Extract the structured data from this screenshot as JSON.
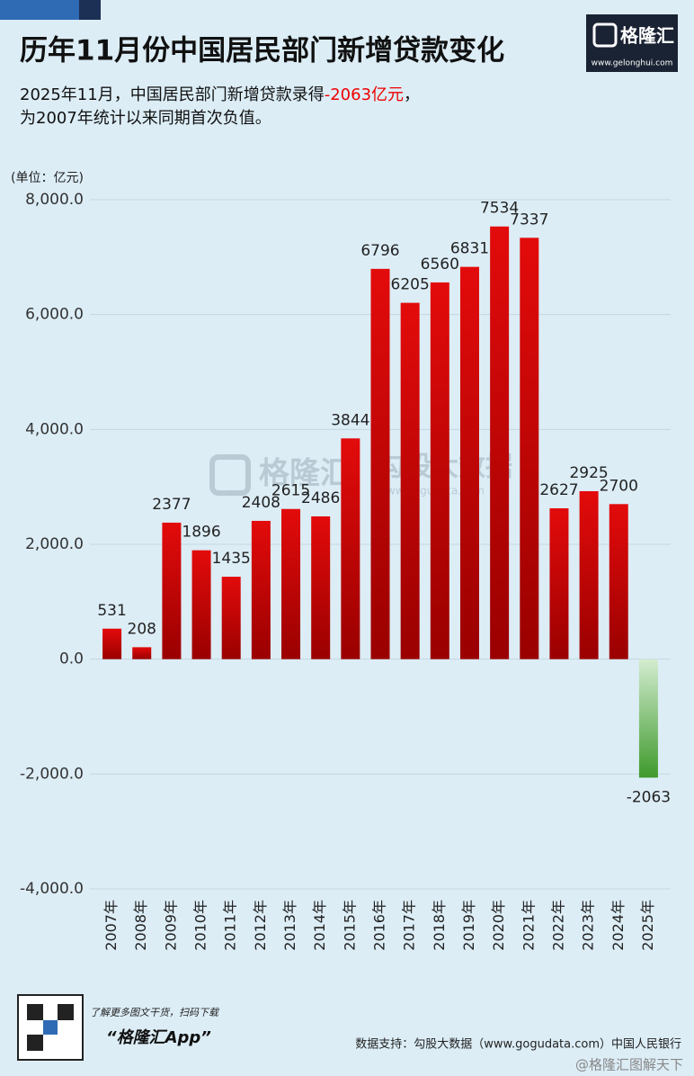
{
  "header": {
    "title": "历年11月份中国居民部门新增贷款变化",
    "subtitle": {
      "before": "2025年11月，中国居民部门新增贷款录得",
      "highlight": "-2063亿元",
      "after": "，"
    },
    "subtitle_line2": "为2007年统计以来同期首次负值。",
    "logo": "格隆汇",
    "logo_url": "www.gelonghui.com"
  },
  "chart_data": {
    "type": "bar",
    "unit": "(单位：亿元)",
    "categories": [
      "2007年",
      "2008年",
      "2009年",
      "2010年",
      "2011年",
      "2012年",
      "2013年",
      "2014年",
      "2015年",
      "2016年",
      "2017年",
      "2018年",
      "2019年",
      "2020年",
      "2021年",
      "2022年",
      "2023年",
      "2024年",
      "2025年"
    ],
    "values": [
      531,
      208,
      2377,
      1896,
      1435,
      2408,
      2615,
      2486,
      3844,
      6796,
      6205,
      6560,
      6831,
      7534,
      7337,
      2627,
      2925,
      2700,
      -2063
    ],
    "color": "#e30b0b",
    "negative_color": "#3f9a2c",
    "ylim": [
      -4000,
      8000
    ],
    "yticks": [
      {
        "value": -4000,
        "label": "-4,000.0"
      },
      {
        "value": -2000,
        "label": "-2,000.0"
      },
      {
        "value": 0,
        "label": "0.0"
      },
      {
        "value": 2000,
        "label": "2,000.0"
      },
      {
        "value": 4000,
        "label": "4,000.0"
      },
      {
        "value": 6000,
        "label": "6,000.0"
      },
      {
        "value": 8000,
        "label": "8,000.0"
      }
    ],
    "grid": true
  },
  "watermark": {
    "brand": "格隆汇",
    "data_brand": "勾股大数据",
    "url": "www.gogudata.com"
  },
  "footer": {
    "qr_note": "了解更多图文干货，扫码下载",
    "app": "“格隆汇App”",
    "source": "数据支持：勾股大数据（www.gogudata.com）中国人民银行",
    "credit": "@格隆汇图解天下"
  }
}
